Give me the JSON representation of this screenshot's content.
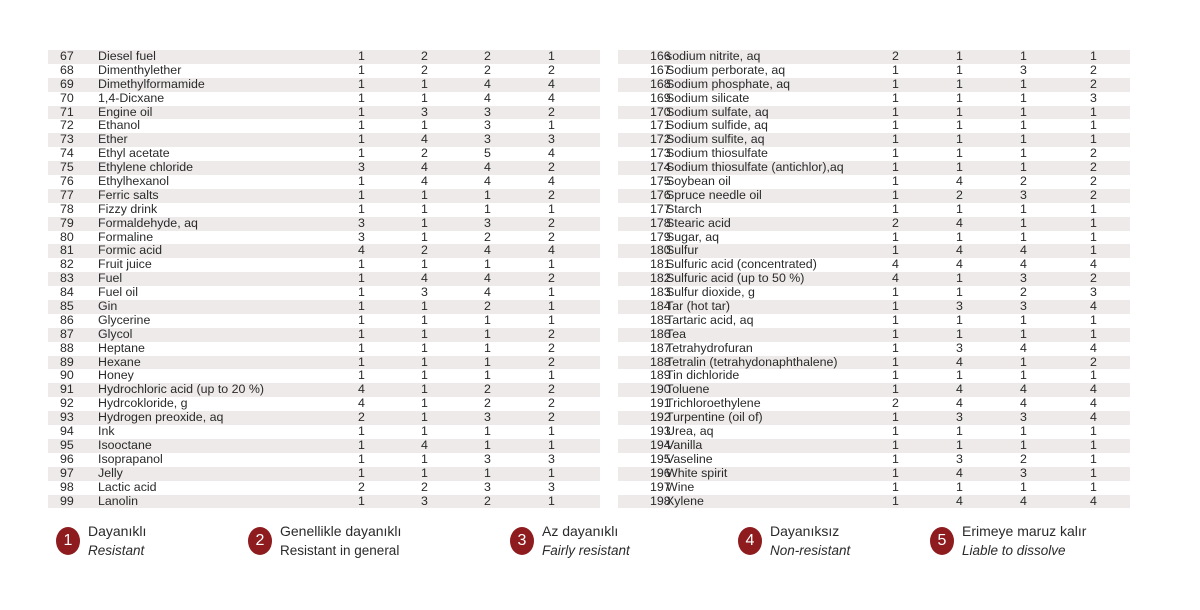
{
  "colors": {
    "badge": "#8e1c1f",
    "stripe": "#eeeaea"
  },
  "left_rows": [
    [
      "67",
      "Diesel fuel",
      "1",
      "2",
      "2",
      "1"
    ],
    [
      "68",
      "Dimenthylether",
      "1",
      "2",
      "2",
      "2"
    ],
    [
      "69",
      "Dimethylformamide",
      "1",
      "1",
      "4",
      "4"
    ],
    [
      "70",
      "1,4-Dicxane",
      "1",
      "1",
      "4",
      "4"
    ],
    [
      "71",
      "Engine oil",
      "1",
      "3",
      "3",
      "2"
    ],
    [
      "72",
      "Ethanol",
      "1",
      "1",
      "3",
      "1"
    ],
    [
      "73",
      "Ether",
      "1",
      "4",
      "3",
      "3"
    ],
    [
      "74",
      "Ethyl acetate",
      "1",
      "2",
      "5",
      "4"
    ],
    [
      "75",
      "Ethylene chloride",
      "3",
      "4",
      "4",
      "2"
    ],
    [
      "76",
      "Ethylhexanol",
      "1",
      "4",
      "4",
      "4"
    ],
    [
      "77",
      "Ferric salts",
      "1",
      "1",
      "1",
      "2"
    ],
    [
      "78",
      "Fizzy drink",
      "1",
      "1",
      "1",
      "1"
    ],
    [
      "79",
      "Formaldehyde, aq",
      "3",
      "1",
      "3",
      "2"
    ],
    [
      "80",
      "Formaline",
      "3",
      "1",
      "2",
      "2"
    ],
    [
      "81",
      "Formic acid",
      "4",
      "2",
      "4",
      "4"
    ],
    [
      "82",
      "Fruit juice",
      "1",
      "1",
      "1",
      "1"
    ],
    [
      "83",
      "Fuel",
      "1",
      "4",
      "4",
      "2"
    ],
    [
      "84",
      "Fuel oil",
      "1",
      "3",
      "4",
      "1"
    ],
    [
      "85",
      "Gin",
      "1",
      "1",
      "2",
      "1"
    ],
    [
      "86",
      "Glycerine",
      "1",
      "1",
      "1",
      "1"
    ],
    [
      "87",
      "Glycol",
      "1",
      "1",
      "1",
      "2"
    ],
    [
      "88",
      "Heptane",
      "1",
      "1",
      "1",
      "2"
    ],
    [
      "89",
      "Hexane",
      "1",
      "1",
      "1",
      "2"
    ],
    [
      "90",
      "Honey",
      "1",
      "1",
      "1",
      "1"
    ],
    [
      "91",
      "Hydrochloric acid (up to 20 %)",
      "4",
      "1",
      "2",
      "2"
    ],
    [
      "92",
      "Hydrcokloride, g",
      "4",
      "1",
      "2",
      "2"
    ],
    [
      "93",
      "Hydrogen preoxide, aq",
      "2",
      "1",
      "3",
      "2"
    ],
    [
      "94",
      "Ink",
      "1",
      "1",
      "1",
      "1"
    ],
    [
      "95",
      "Isooctane",
      "1",
      "4",
      "1",
      "1"
    ],
    [
      "96",
      "Isoprapanol",
      "1",
      "1",
      "3",
      "3"
    ],
    [
      "97",
      "Jelly",
      "1",
      "1",
      "1",
      "1"
    ],
    [
      "98",
      "Lactic acid",
      "2",
      "2",
      "3",
      "3"
    ],
    [
      "99",
      "Lanolin",
      "1",
      "3",
      "2",
      "1"
    ]
  ],
  "right_rows": [
    [
      "166",
      "sodium nitrite, aq",
      "2",
      "1",
      "1",
      "1"
    ],
    [
      "167",
      "Sodium perborate, aq",
      "1",
      "1",
      "3",
      "2"
    ],
    [
      "168",
      "Sodium phosphate, aq",
      "1",
      "1",
      "1",
      "2"
    ],
    [
      "169",
      "Sodium silicate",
      "1",
      "1",
      "1",
      "3"
    ],
    [
      "170",
      "Sodium sulfate, aq",
      "1",
      "1",
      "1",
      "1"
    ],
    [
      "171",
      "Sodium sulfide, aq",
      "1",
      "1",
      "1",
      "1"
    ],
    [
      "172",
      "Sodium sulfite, aq",
      "1",
      "1",
      "1",
      "1"
    ],
    [
      "173",
      "Sodium thiosulfate",
      "1",
      "1",
      "1",
      "2"
    ],
    [
      "174",
      "Sodium thiosulfate (antichlor),aq",
      "1",
      "1",
      "1",
      "2"
    ],
    [
      "175",
      "Soybean oil",
      "1",
      "4",
      "2",
      "2"
    ],
    [
      "176",
      "Spruce needle oil",
      "1",
      "2",
      "3",
      "2"
    ],
    [
      "177",
      "Starch",
      "1",
      "1",
      "1",
      "1"
    ],
    [
      "178",
      "Stearic acid",
      "2",
      "4",
      "1",
      "1"
    ],
    [
      "179",
      "Sugar, aq",
      "1",
      "1",
      "1",
      "1"
    ],
    [
      "180",
      "Sulfur",
      "1",
      "4",
      "4",
      "1"
    ],
    [
      "181",
      "Sulfuric acid (concentrated)",
      "4",
      "4",
      "4",
      "4"
    ],
    [
      "182",
      "Sulfuric acid (up to 50 %)",
      "4",
      "1",
      "3",
      "2"
    ],
    [
      "183",
      "Sulfur dioxide, g",
      "1",
      "1",
      "2",
      "3"
    ],
    [
      "184",
      "Tar (hot tar)",
      "1",
      "3",
      "3",
      "4"
    ],
    [
      "185",
      "Tartaric acid, aq",
      "1",
      "1",
      "1",
      "1"
    ],
    [
      "186",
      "Tea",
      "1",
      "1",
      "1",
      "1"
    ],
    [
      "187",
      "Tetrahydrofuran",
      "1",
      "3",
      "4",
      "4"
    ],
    [
      "188",
      "Tetralin (tetrahydonaphthalene)",
      "1",
      "4",
      "1",
      "2"
    ],
    [
      "189",
      "Tin dichloride",
      "1",
      "1",
      "1",
      "1"
    ],
    [
      "190",
      "Toluene",
      "1",
      "4",
      "4",
      "4"
    ],
    [
      "191",
      "Trichloroethylene",
      "2",
      "4",
      "4",
      "4"
    ],
    [
      "192",
      "Turpentine (oil of)",
      "1",
      "3",
      "3",
      "4"
    ],
    [
      "193",
      "Urea, aq",
      "1",
      "1",
      "1",
      "1"
    ],
    [
      "194",
      "Vanilla",
      "1",
      "1",
      "1",
      "1"
    ],
    [
      "195",
      "Vaseline",
      "1",
      "3",
      "2",
      "1"
    ],
    [
      "196",
      "White spirit",
      "1",
      "4",
      "3",
      "1"
    ],
    [
      "197",
      "Wine",
      "1",
      "1",
      "1",
      "1"
    ],
    [
      "198",
      "Xylene",
      "1",
      "4",
      "4",
      "4"
    ]
  ],
  "legend": [
    {
      "num": "1",
      "tr": "Dayanıklı",
      "en": "Resistant",
      "italic": true
    },
    {
      "num": "2",
      "tr": "Genellikle dayanıklı",
      "en": "Resistant in general",
      "italic": false
    },
    {
      "num": "3",
      "tr": "Az dayanıklı",
      "en": "Fairly resistant",
      "italic": true
    },
    {
      "num": "4",
      "tr": "Dayanıksız",
      "en": "Non-resistant",
      "italic": true
    },
    {
      "num": "5",
      "tr": "Erimeye maruz kalır",
      "en": "Liable to dissolve",
      "italic": true
    }
  ]
}
